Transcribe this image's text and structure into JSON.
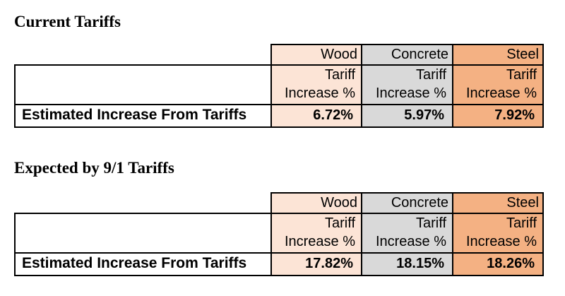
{
  "tables": [
    {
      "title": "Current Tariffs",
      "row_label": "Estimated Increase From Tariffs",
      "columns": [
        {
          "name": "Wood",
          "subheader": "Tariff Increase %",
          "value": "6.72%",
          "fill": "#FCE4D6"
        },
        {
          "name": "Concrete",
          "subheader": "Tariff Increase %",
          "value": "5.97%",
          "fill": "#D9D9D9"
        },
        {
          "name": "Steel",
          "subheader": "Tariff Increase %",
          "value": "7.92%",
          "fill": "#F4B183"
        }
      ]
    },
    {
      "title": "Expected by 9/1 Tariffs",
      "row_label": "Estimated Increase From Tariffs",
      "columns": [
        {
          "name": "Wood",
          "subheader": "Tariff Increase %",
          "value": "17.82%",
          "fill": "#FCE4D6"
        },
        {
          "name": "Concrete",
          "subheader": "Tariff Increase %",
          "value": "18.15%",
          "fill": "#D9D9D9"
        },
        {
          "name": "Steel",
          "subheader": "Tariff Increase %",
          "value": "18.26%",
          "fill": "#F4B183"
        }
      ]
    }
  ],
  "colors": {
    "wood_fill": "#FCE4D6",
    "concrete_fill": "#D9D9D9",
    "steel_fill": "#F4B183",
    "border": "#000000",
    "background": "#FFFFFF"
  },
  "chart_data": [
    {
      "type": "table",
      "title": "Current Tariffs",
      "columns": [
        "Wood",
        "Concrete",
        "Steel"
      ],
      "column_subheader": "Tariff Increase %",
      "rows": [
        {
          "label": "Estimated Increase From Tariffs",
          "values": [
            "6.72%",
            "5.97%",
            "7.92%"
          ]
        }
      ],
      "values_numeric": [
        6.72,
        5.97,
        7.92
      ]
    },
    {
      "type": "table",
      "title": "Expected by 9/1 Tariffs",
      "columns": [
        "Wood",
        "Concrete",
        "Steel"
      ],
      "column_subheader": "Tariff Increase %",
      "rows": [
        {
          "label": "Estimated Increase From Tariffs",
          "values": [
            "17.82%",
            "18.15%",
            "18.26%"
          ]
        }
      ],
      "values_numeric": [
        17.82,
        18.15,
        18.26
      ]
    }
  ]
}
